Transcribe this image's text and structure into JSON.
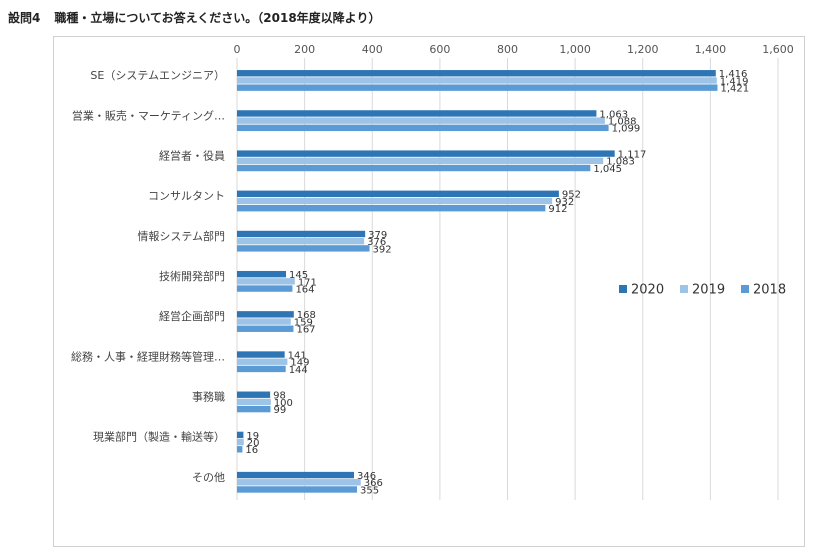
{
  "page": {
    "question_number": "設問4",
    "question_text": "職種・立場についてお答えください。（2018年度以降より）"
  },
  "chart_data": {
    "type": "bar",
    "orientation": "horizontal",
    "title": "",
    "xlabel": "",
    "ylabel": "",
    "xlim": [
      0,
      1600
    ],
    "x_ticks": [
      "0",
      "200",
      "400",
      "600",
      "800",
      "1,000",
      "1,200",
      "1,400",
      "1,600"
    ],
    "grid": "vertical",
    "legend_position": "right",
    "categories": [
      "SE（システムエンジニア）",
      "営業・販売・マーケティング…",
      "経営者・役員",
      "コンサルタント",
      "情報システム部門",
      "技術開発部門",
      "経営企画部門",
      "総務・人事・経理財務等管理…",
      "事務職",
      "現業部門（製造・輸送等）",
      "その他"
    ],
    "series": [
      {
        "name": "2020",
        "color": "#2E75B6",
        "values": [
          1416,
          1063,
          1117,
          952,
          379,
          145,
          168,
          141,
          98,
          19,
          346
        ],
        "labels": [
          "1,416",
          "1,063",
          "1,117",
          "952",
          "379",
          "145",
          "168",
          "141",
          "98",
          "19",
          "346"
        ]
      },
      {
        "name": "2019",
        "color": "#9DC3E6",
        "values": [
          1419,
          1088,
          1083,
          932,
          376,
          171,
          159,
          149,
          100,
          20,
          366
        ],
        "labels": [
          "1,419",
          "1,088",
          "1,083",
          "932",
          "376",
          "171",
          "159",
          "149",
          "100",
          "20",
          "366"
        ]
      },
      {
        "name": "2018",
        "color": "#5B9BD5",
        "values": [
          1421,
          1099,
          1045,
          912,
          392,
          164,
          167,
          144,
          99,
          16,
          355
        ],
        "labels": [
          "1,421",
          "1,099",
          "1,045",
          "912",
          "392",
          "164",
          "167",
          "144",
          "99",
          "16",
          "355"
        ]
      }
    ]
  }
}
